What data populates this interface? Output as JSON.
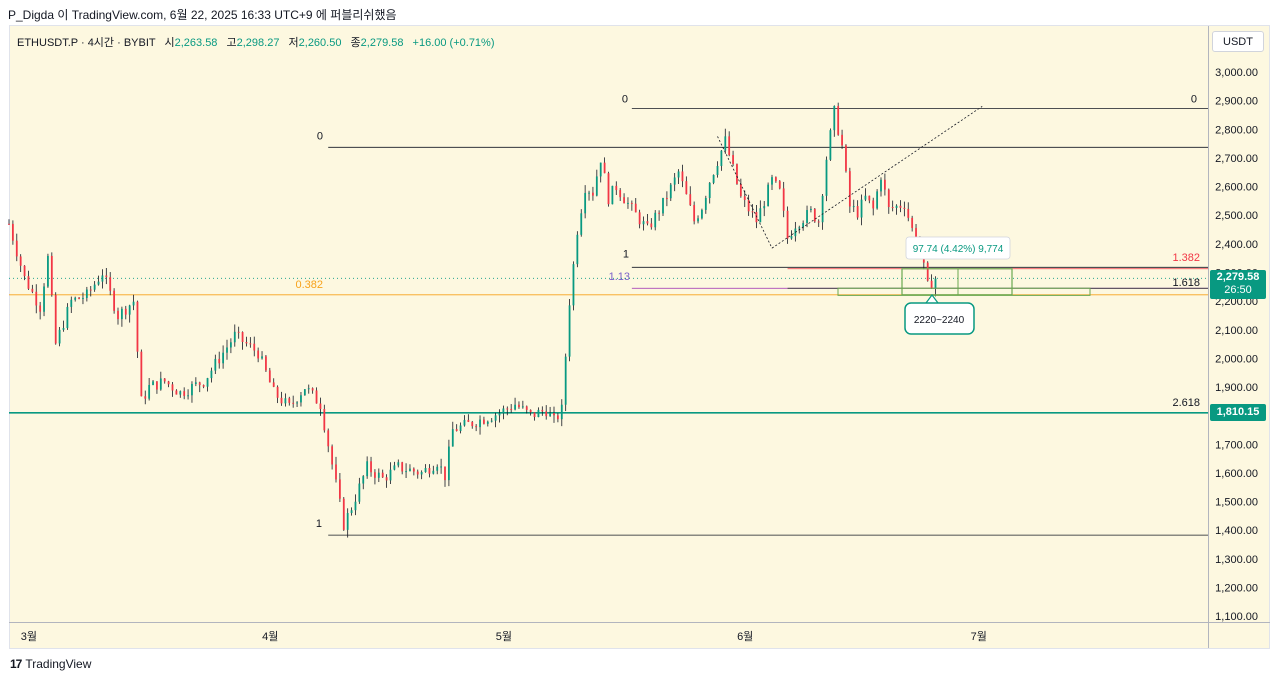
{
  "header": {
    "attribution": "P_Digda 이 TradingView.com, 6월 22, 2025 16:33 UTC+9 에 퍼블리쉬했음"
  },
  "legend": {
    "symbol": "ETHUSDT.P · 4시간 · BYBIT",
    "open_label": "시",
    "open": "2,263.58",
    "high_label": "고",
    "high": "2,298.27",
    "low_label": "저",
    "low": "2,260.50",
    "close_label": "종",
    "close": "2,279.58",
    "change": "+16.00 (+0.71%)"
  },
  "currency_button": "USDT",
  "footer": {
    "logo": "17",
    "brand": "TradingView"
  },
  "colors": {
    "up": "#089981",
    "down": "#f23645",
    "background": "#fdf8e0",
    "support_line": "#089981",
    "fib_orange": "#f7a21b",
    "annotation_green": "#6aa84f"
  },
  "chart_data": {
    "type": "candlestick",
    "ylim": [
      1050,
      3060
    ],
    "y_ticks": [
      "3,000.00",
      "2,900.00",
      "2,800.00",
      "2,700.00",
      "2,600.00",
      "2,500.00",
      "2,400.00",
      "2,300.00",
      "2,200.00",
      "2,100.00",
      "2,000.00",
      "1,900.00",
      "1,800.00",
      "1,700.00",
      "1,600.00",
      "1,500.00",
      "1,400.00",
      "1,300.00",
      "1,200.00",
      "1,100.00"
    ],
    "y_tick_values": [
      3000,
      2900,
      2800,
      2700,
      2600,
      2500,
      2400,
      2300,
      2200,
      2100,
      2000,
      1900,
      1800,
      1700,
      1600,
      1500,
      1400,
      1300,
      1200,
      1100
    ],
    "x_labels": [
      "3월",
      "4월",
      "5월",
      "6월",
      "7월"
    ],
    "x_label_days": [
      1,
      32,
      62,
      93,
      123
    ],
    "days_visible": [
      0,
      154
    ],
    "price_path": [
      [
        0,
        2470
      ],
      [
        2,
        2280
      ],
      [
        4,
        2180
      ],
      [
        5,
        2350
      ],
      [
        6,
        2050
      ],
      [
        8,
        2200
      ],
      [
        10,
        2220
      ],
      [
        12,
        2300
      ],
      [
        14,
        2150
      ],
      [
        16,
        2200
      ],
      [
        17,
        1850
      ],
      [
        18,
        1900
      ],
      [
        20,
        1920
      ],
      [
        22,
        1880
      ],
      [
        25,
        1920
      ],
      [
        27,
        2000
      ],
      [
        29,
        2080
      ],
      [
        30,
        2060
      ],
      [
        32,
        2020
      ],
      [
        34,
        1880
      ],
      [
        36,
        1830
      ],
      [
        38,
        1900
      ],
      [
        40,
        1840
      ],
      [
        41,
        1700
      ],
      [
        42,
        1560
      ],
      [
        43,
        1420
      ],
      [
        44,
        1480
      ],
      [
        46,
        1620
      ],
      [
        48,
        1580
      ],
      [
        50,
        1620
      ],
      [
        53,
        1600
      ],
      [
        55,
        1640
      ],
      [
        56,
        1590
      ],
      [
        57,
        1750
      ],
      [
        60,
        1780
      ],
      [
        63,
        1810
      ],
      [
        65,
        1840
      ],
      [
        67,
        1800
      ],
      [
        69,
        1820
      ],
      [
        70,
        1780
      ],
      [
        71,
        1820
      ],
      [
        72,
        2200
      ],
      [
        73,
        2450
      ],
      [
        74,
        2600
      ],
      [
        75,
        2580
      ],
      [
        76,
        2700
      ],
      [
        77,
        2560
      ],
      [
        78,
        2600
      ],
      [
        80,
        2520
      ],
      [
        82,
        2450
      ],
      [
        84,
        2540
      ],
      [
        86,
        2650
      ],
      [
        88,
        2480
      ],
      [
        89,
        2530
      ],
      [
        90,
        2620
      ],
      [
        92,
        2760
      ],
      [
        94,
        2560
      ],
      [
        96,
        2480
      ],
      [
        98,
        2620
      ],
      [
        99,
        2580
      ],
      [
        100,
        2420
      ],
      [
        101,
        2470
      ],
      [
        103,
        2510
      ],
      [
        104,
        2480
      ],
      [
        105,
        2700
      ],
      [
        106,
        2860
      ],
      [
        107,
        2740
      ],
      [
        108,
        2530
      ],
      [
        109,
        2510
      ],
      [
        110,
        2560
      ],
      [
        111,
        2520
      ],
      [
        112,
        2640
      ],
      [
        113,
        2520
      ],
      [
        115,
        2540
      ],
      [
        116,
        2450
      ],
      [
        117,
        2380
      ],
      [
        118,
        2250
      ],
      [
        119,
        2280
      ]
    ],
    "last": {
      "price": "2,279.58",
      "countdown": "26:50",
      "value": 2279.58
    },
    "horizontal_levels": [
      {
        "label": "0",
        "price": 2872,
        "start_day": 80
      },
      {
        "label": "0",
        "price": 2737,
        "start_day": 41
      },
      {
        "label": "1",
        "price": 2318,
        "start_day": 80
      },
      {
        "label": "1.382",
        "price": 2313,
        "start_day": 100
      },
      {
        "label": "1.13",
        "price": 2245,
        "start_day": 80
      },
      {
        "label": "1.618",
        "price": 2245,
        "start_day": 100
      },
      {
        "label": "0.382",
        "price": 2222,
        "start_day": 0
      },
      {
        "label": "2.618",
        "price": 1810,
        "start_day": 0
      },
      {
        "label": "1",
        "price": 1383,
        "start_day": 41
      }
    ],
    "support": {
      "price": "1,810.15",
      "value": 1810.15
    },
    "measure_label": "97.74 (4.42%) 9,774",
    "zone_label": "2220~2240",
    "projection": [
      [
        91,
        2775
      ],
      [
        98,
        2385
      ],
      [
        125,
        2880
      ]
    ]
  }
}
